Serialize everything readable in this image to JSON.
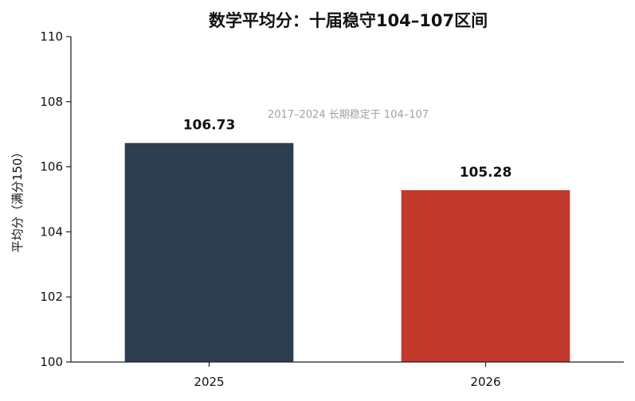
{
  "chart_data": {
    "type": "bar",
    "title": "数学平均分：十届稳守104–107区间",
    "ylabel": "平均分（满分150）",
    "xlabel": "",
    "categories": [
      "2025",
      "2026"
    ],
    "values": [
      106.73,
      105.28
    ],
    "data_labels": [
      "106.73",
      "105.28"
    ],
    "ylim": [
      100,
      110
    ],
    "yticks": [
      100,
      102,
      104,
      106,
      108,
      110
    ],
    "colors": [
      "#2c3e50",
      "#c0392b"
    ],
    "annotation": "2017–2024 长期稳定于 104–107",
    "grid": false,
    "legend": "none"
  }
}
